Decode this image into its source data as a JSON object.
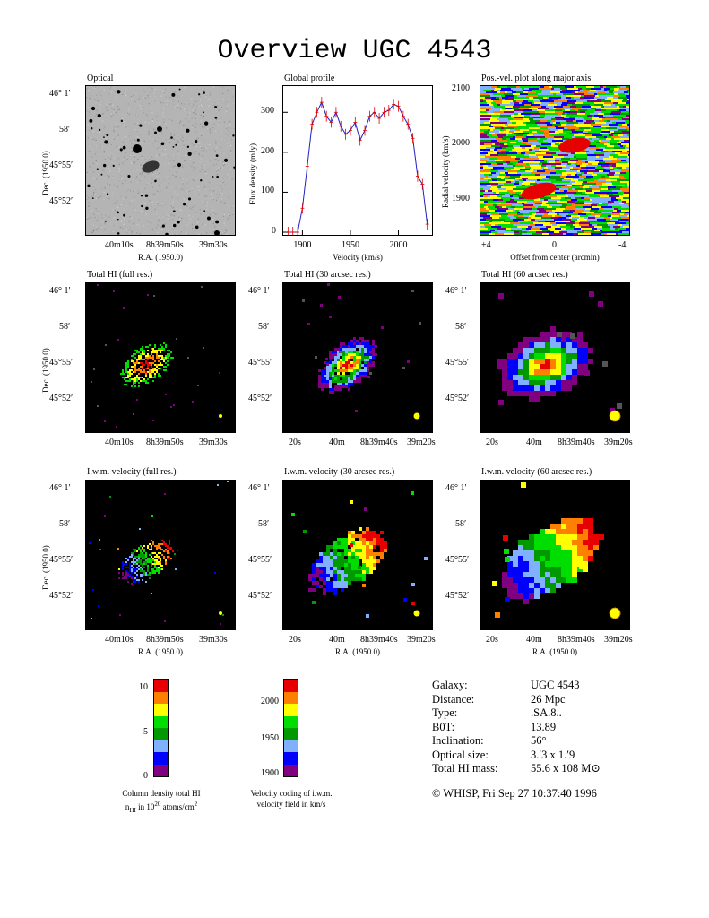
{
  "title": "Overview UGC 4543",
  "panels": {
    "optical": {
      "title": "Optical"
    },
    "profile": {
      "title": "Global profile",
      "xlabel": "Velocity (km/s)",
      "ylabel": "Flux density (mJy)",
      "xticks": [
        "1900",
        "1950",
        "2000"
      ],
      "yticks": [
        "0",
        "100",
        "200",
        "300"
      ]
    },
    "pv": {
      "title": "Pos.-vel. plot along major axis",
      "xlabel": "Offset from center (arcmin)",
      "ylabel": "Radial velocity (km/s)",
      "xticks": [
        "+4",
        "0",
        "-4"
      ],
      "yticks": [
        "2100",
        "2000",
        "1900"
      ]
    },
    "hi_full": {
      "title": "Total HI (full res.)"
    },
    "hi_30": {
      "title": "Total HI (30 arcsec res.)"
    },
    "hi_60": {
      "title": "Total HI (60 arcsec res.)"
    },
    "vel_full": {
      "title": "I.w.m. velocity (full res.)"
    },
    "vel_30": {
      "title": "I.w.m. velocity (30 arcsec res.)"
    },
    "vel_60": {
      "title": "I.w.m. velocity (60 arcsec res.)"
    }
  },
  "axes": {
    "dec_label": "Dec. (1950.0)",
    "ra_label": "R.A. (1950.0)",
    "dec_ticks": [
      "46° 1′",
      "58′",
      "45°55′",
      "45°52′"
    ],
    "ra_ticks_full": [
      "40m10s",
      "8h39m50s",
      "39m30s"
    ],
    "ra_ticks_smooth": [
      "20s",
      "40m",
      "8h39m40s",
      "39m20s"
    ]
  },
  "colorbars": {
    "column_density": {
      "ticks": [
        "10",
        "5",
        "0"
      ],
      "caption_line1": "Column density total HI",
      "caption_line2": "nHI in 1020 atoms/cm2"
    },
    "velocity": {
      "ticks": [
        "2000",
        "1950",
        "1900"
      ],
      "caption_line1": "Velocity coding of i.w.m.",
      "caption_line2": "velocity field in km/s"
    },
    "colors": [
      "#e60000",
      "#ff8000",
      "#ffff00",
      "#00dd00",
      "#009900",
      "#80b0ff",
      "#0000ff",
      "#800080"
    ]
  },
  "info": {
    "rows": [
      {
        "key": "Galaxy:",
        "value": "UGC 4543"
      },
      {
        "key": "Distance:",
        "value": "26 Mpc"
      },
      {
        "key": "Type:",
        "value": ".SA.8.."
      },
      {
        "key": "B0T:",
        "value": "13.89"
      },
      {
        "key": "Inclination:",
        "value": "56°"
      },
      {
        "key": "Optical size:",
        "value": "3.′3 x 1.′9"
      },
      {
        "key": "Total HI mass:",
        "value": "55.6 x 108 M⊙"
      }
    ],
    "copyright": "© WHISP, Fri Sep 27 10:37:40 1996"
  },
  "chart_data": {
    "type": "line",
    "title": "Global profile",
    "xlabel": "Velocity (km/s)",
    "ylabel": "Flux density (mJy)",
    "xlim": [
      1880,
      2035
    ],
    "ylim": [
      0,
      350
    ],
    "x": [
      1885,
      1890,
      1895,
      1900,
      1905,
      1910,
      1915,
      1920,
      1925,
      1930,
      1935,
      1940,
      1945,
      1950,
      1955,
      1960,
      1965,
      1970,
      1975,
      1980,
      1985,
      1990,
      1995,
      2000,
      2005,
      2010,
      2015,
      2020,
      2025,
      2030
    ],
    "series": [
      {
        "values": [
          0,
          0,
          0,
          60,
          165,
          270,
          300,
          325,
          290,
          275,
          300,
          265,
          245,
          255,
          275,
          230,
          255,
          290,
          300,
          285,
          300,
          305,
          320,
          315,
          290,
          270,
          235,
          140,
          120,
          20
        ]
      }
    ]
  }
}
